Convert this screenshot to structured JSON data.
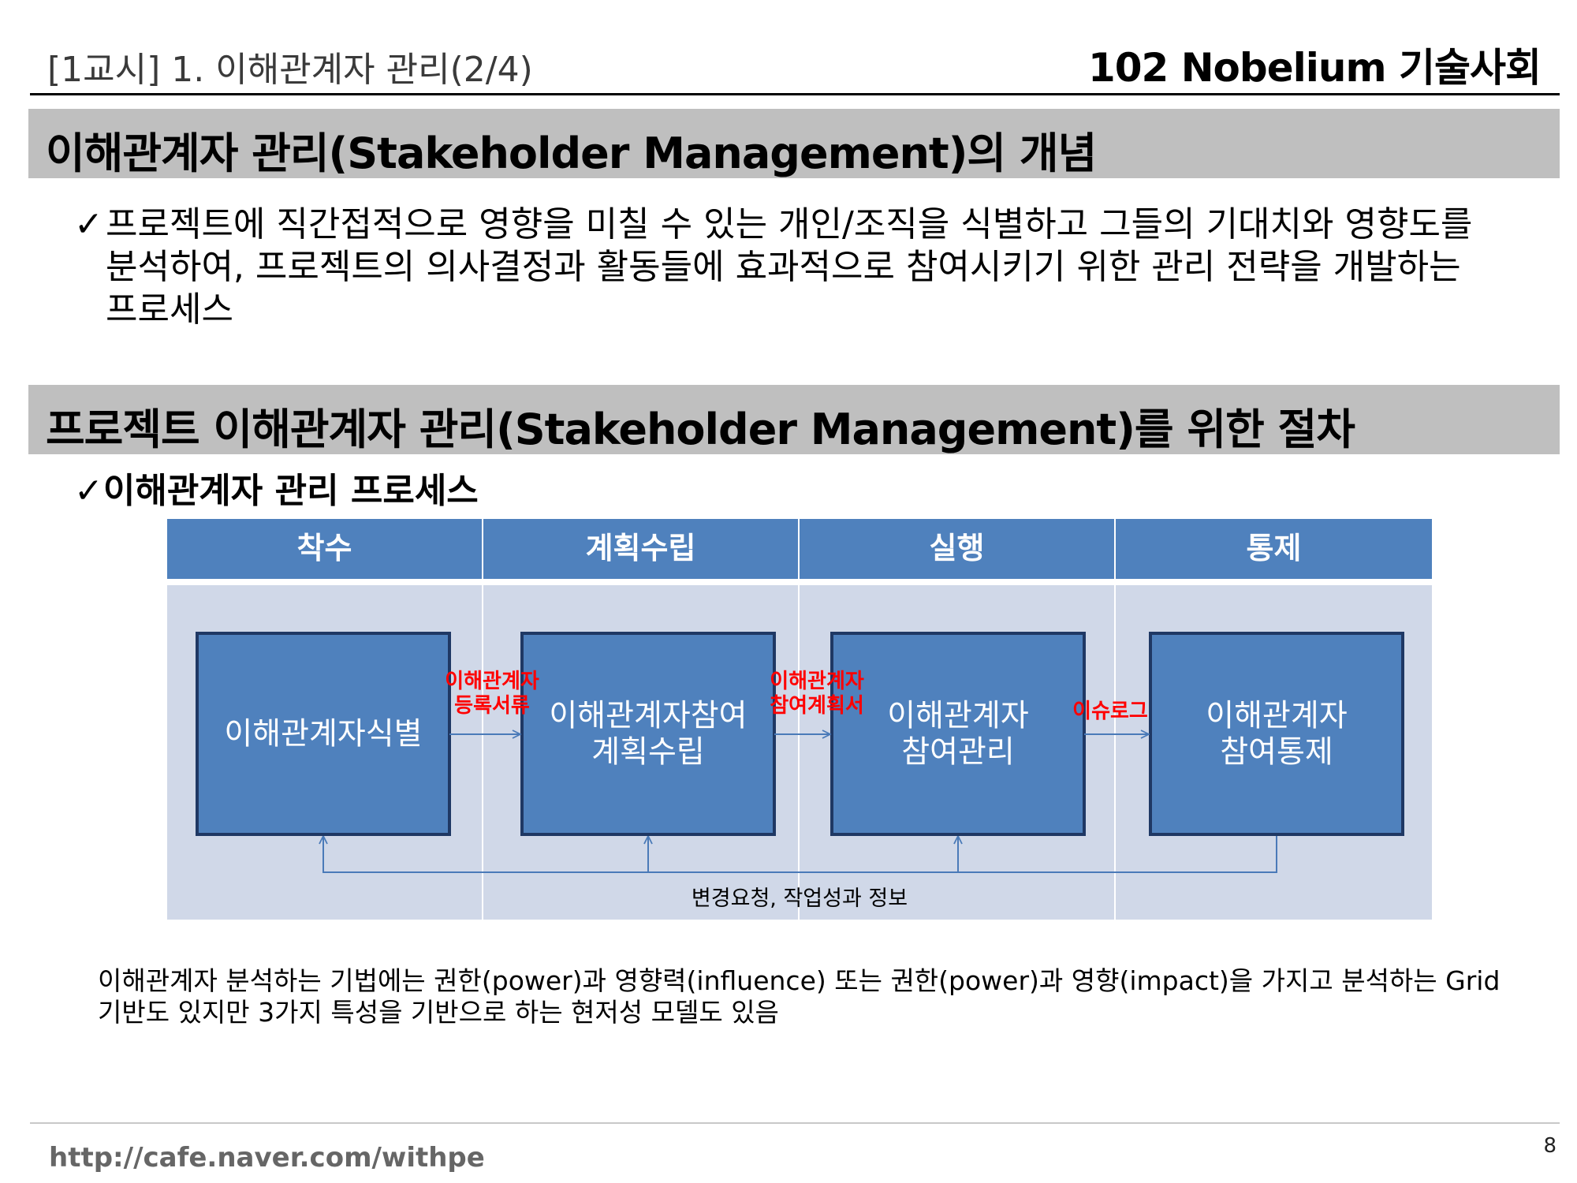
{
  "header": {
    "left_title": "[1교시] 1. 이해관계자 관리(2/4)",
    "right_title": "102 Nobelium 기술사회"
  },
  "section1": {
    "title": "이해관계자 관리(Stakeholder Management)의 개념",
    "bullet_mark": "✓",
    "body": "프로젝트에 직간접적으로 영향을 미칠 수 있는 개인/조직을 식별하고 그들의 기대치와 영향도를 분석하여, 프로젝트의 의사결정과 활동들에 효과적으로 참여시키기 위한 관리 전략을 개발하는 프로세스"
  },
  "section2": {
    "title": "프로젝트 이해관계자 관리(Stakeholder Management)를 위한 절차",
    "sub_heading": "✓이해관계자 관리 프로세스"
  },
  "diagram": {
    "phases": [
      "착수",
      "계획수립",
      "실행",
      "통제"
    ],
    "boxes": [
      {
        "lines": [
          "이해관계자식별"
        ]
      },
      {
        "lines": [
          "이해관계자참여",
          "계획수립"
        ]
      },
      {
        "lines": [
          "이해관계자",
          "참여관리"
        ]
      },
      {
        "lines": [
          "이해관계자",
          "참여통제"
        ]
      }
    ],
    "arrow_labels": [
      {
        "lines": [
          "이해관계자",
          "등록서류"
        ]
      },
      {
        "lines": [
          "이해관계자",
          "참여계획서"
        ]
      },
      {
        "lines": [
          "이슈로그"
        ]
      }
    ],
    "feedback_label": "변경요청, 작업성과 정보",
    "colors": {
      "phase_header": "#4f81bd",
      "phase_body": "#d0d8e8",
      "box_fill": "#4f81bd",
      "box_border": "#1f3864",
      "arrow_line": "#4a7ab8",
      "arrow_label": "#ff0000"
    }
  },
  "note": {
    "text": "이해관계자 분석하는 기법에는 권한(power)과 영향력(influence) 또는 권한(power)과 영향(impact)을 가지고 분석하는 Grid 기반도 있지만 3가지 특성을 기반으로 하는 현저성 모델도 있음"
  },
  "footer": {
    "url": "http://cafe.naver.com/withpe",
    "page": "8"
  }
}
